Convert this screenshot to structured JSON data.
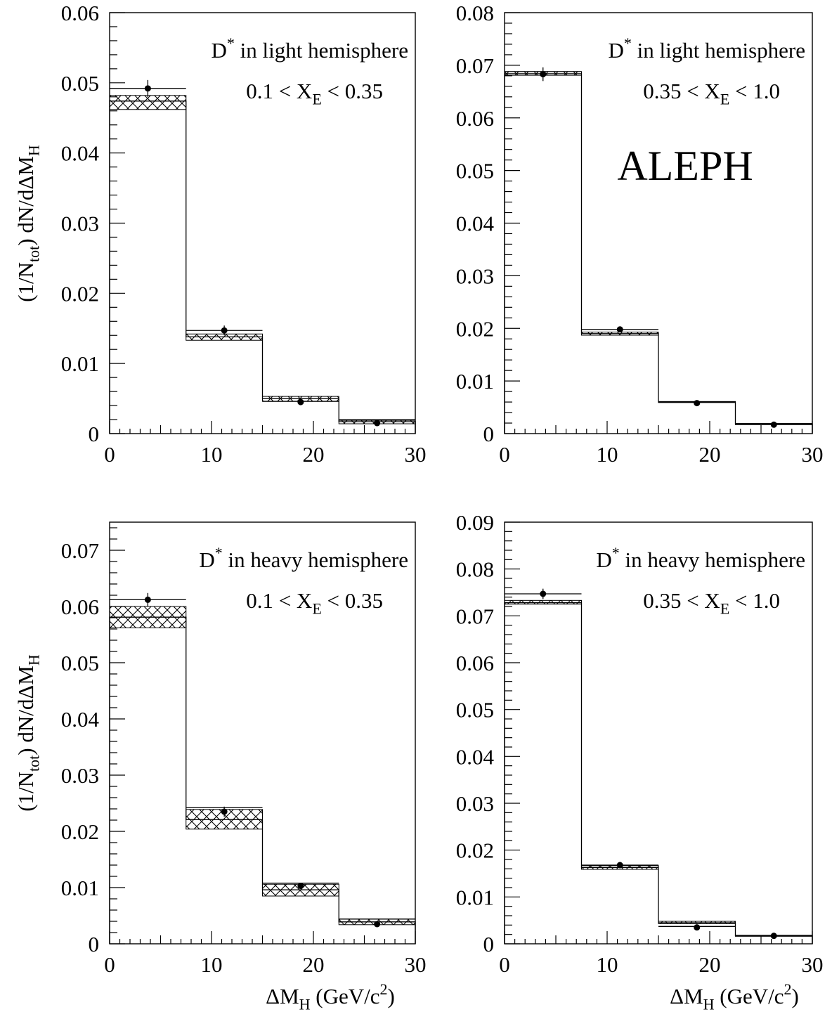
{
  "figure": {
    "experiment_label": "ALEPH",
    "ylabel": "(1/N_tot) dN/dΔM_H",
    "xlabel": "ΔM_H (GeV/c²)"
  },
  "chart_data": [
    {
      "type": "bar",
      "subtype": "step-histogram",
      "panel": "top-left",
      "annotation_line1": "D* in light hemisphere",
      "annotation_line2": "0.1 < X_E < 0.35",
      "xlim": [
        0,
        30
      ],
      "ylim": [
        0,
        0.06
      ],
      "x_ticks": [
        0,
        10,
        20,
        30
      ],
      "y_ticks": [
        "0",
        "0.01",
        "0.02",
        "0.03",
        "0.04",
        "0.05",
        "0.06"
      ],
      "bin_edges": [
        0,
        7.5,
        15,
        22.5,
        30
      ],
      "series": [
        {
          "values": [
            0.0474,
            0.0138,
            0.005,
            0.0017
          ],
          "band_low": [
            0.0462,
            0.0133,
            0.0046,
            0.0014
          ],
          "band_high": [
            0.0482,
            0.0142,
            0.0053,
            0.002
          ]
        },
        {
          "values": [
            0.0492,
            0.0147,
            0.0045,
            0.0015
          ],
          "errors": [
            0.0012,
            0.0007,
            0.0003,
            0.0002
          ]
        },
        {
          "values": [
            0.0492,
            0.0147,
            0.0046,
            0.0019
          ]
        }
      ]
    },
    {
      "type": "bar",
      "subtype": "step-histogram",
      "panel": "top-right",
      "annotation_line1": "D* in light hemisphere",
      "annotation_line2": "0.35 < X_E < 1.0",
      "xlim": [
        0,
        30
      ],
      "ylim": [
        0,
        0.08
      ],
      "x_ticks": [
        0,
        10,
        20,
        30
      ],
      "y_ticks": [
        "0",
        "0.01",
        "0.02",
        "0.03",
        "0.04",
        "0.05",
        "0.06",
        "0.07",
        "0.08"
      ],
      "bin_edges": [
        0,
        7.5,
        15,
        22.5,
        30
      ],
      "series": [
        {
          "values": [
            0.0684,
            0.019,
            0.006,
            0.0018
          ],
          "band_low": [
            0.0681,
            0.0187,
            0.0059,
            0.0017
          ],
          "band_high": [
            0.0688,
            0.0193,
            0.0061,
            0.0019
          ]
        },
        {
          "values": [
            0.0683,
            0.0198,
            0.0058,
            0.0017
          ],
          "errors": [
            0.0013,
            0.0005,
            0.0002,
            0.0001
          ]
        },
        {
          "values": [
            0.0688,
            0.0198,
            0.006,
            0.0019
          ]
        }
      ]
    },
    {
      "type": "bar",
      "subtype": "step-histogram",
      "panel": "bottom-left",
      "annotation_line1": "D* in heavy hemisphere",
      "annotation_line2": "0.1 < X_E < 0.35",
      "xlim": [
        0,
        30
      ],
      "ylim": [
        0,
        0.075
      ],
      "x_ticks": [
        0,
        10,
        20,
        30
      ],
      "y_ticks": [
        "0",
        "0.01",
        "0.02",
        "0.03",
        "0.04",
        "0.05",
        "0.06",
        "0.07"
      ],
      "bin_edges": [
        0,
        7.5,
        15,
        22.5,
        30
      ],
      "series": [
        {
          "values": [
            0.0581,
            0.0221,
            0.0096,
            0.0039
          ],
          "band_low": [
            0.0562,
            0.0204,
            0.0085,
            0.0034
          ],
          "band_high": [
            0.06,
            0.0239,
            0.0106,
            0.0044
          ]
        },
        {
          "values": [
            0.0612,
            0.0235,
            0.0103,
            0.0035
          ],
          "errors": [
            0.0012,
            0.0009,
            0.0004,
            0.0002
          ]
        },
        {
          "values": [
            0.0612,
            0.0242,
            0.0108,
            0.0044
          ]
        }
      ]
    },
    {
      "type": "bar",
      "subtype": "step-histogram",
      "panel": "bottom-right",
      "annotation_line1": "D* in heavy hemisphere",
      "annotation_line2": "0.35 < X_E < 1.0",
      "xlim": [
        0,
        30
      ],
      "ylim": [
        0,
        0.09
      ],
      "x_ticks": [
        0,
        10,
        20,
        30
      ],
      "y_ticks": [
        "0",
        "0.01",
        "0.02",
        "0.03",
        "0.04",
        "0.05",
        "0.06",
        "0.07",
        "0.08",
        "0.09"
      ],
      "bin_edges": [
        0,
        7.5,
        15,
        22.5,
        30
      ],
      "series": [
        {
          "values": [
            0.0728,
            0.0163,
            0.0045,
            0.0017
          ],
          "band_low": [
            0.0725,
            0.0159,
            0.0043,
            0.0016
          ],
          "band_high": [
            0.0733,
            0.0167,
            0.0048,
            0.0018
          ]
        },
        {
          "values": [
            0.0747,
            0.0168,
            0.0035,
            0.0017
          ],
          "errors": [
            0.0011,
            0.0003,
            0.0002,
            0.0001
          ]
        },
        {
          "values": [
            0.0747,
            0.0168,
            0.0037,
            0.0018
          ]
        }
      ]
    }
  ]
}
